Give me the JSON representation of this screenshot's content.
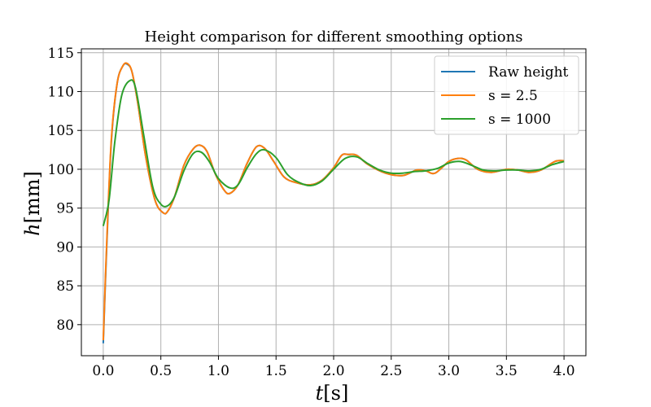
{
  "chart_data": {
    "type": "line",
    "title": "Height comparison for different smoothing options",
    "xlabel_italic": "t",
    "xlabel_unit": "[s]",
    "ylabel_italic": "h",
    "ylabel_unit": "[mm]",
    "xlim": [
      -0.19,
      4.19
    ],
    "ylim": [
      76.0,
      115.5
    ],
    "xticks": [
      0.0,
      0.5,
      1.0,
      1.5,
      2.0,
      2.5,
      3.0,
      3.5,
      4.0
    ],
    "xtick_labels": [
      "0.0",
      "0.5",
      "1.0",
      "1.5",
      "2.0",
      "2.5",
      "3.0",
      "3.5",
      "4.0"
    ],
    "yticks": [
      80,
      85,
      90,
      95,
      100,
      105,
      110,
      115
    ],
    "ytick_labels": [
      "80",
      "85",
      "90",
      "95",
      "100",
      "105",
      "110",
      "115"
    ],
    "grid": true,
    "legend_position": "top-right",
    "series": [
      {
        "name": "Raw height",
        "color": "#1f77b4",
        "x": [
          0.0,
          0.03,
          0.07,
          0.12,
          0.17,
          0.21,
          0.25,
          0.3,
          0.37,
          0.45,
          0.52,
          0.56,
          0.62,
          0.7,
          0.78,
          0.84,
          0.9,
          0.97,
          1.05,
          1.1,
          1.17,
          1.25,
          1.33,
          1.4,
          1.48,
          1.57,
          1.67,
          1.8,
          1.9,
          2.0,
          2.07,
          2.13,
          2.2,
          2.3,
          2.45,
          2.6,
          2.72,
          2.8,
          2.88,
          3.0,
          3.08,
          3.15,
          3.25,
          3.37,
          3.5,
          3.6,
          3.7,
          3.8,
          3.92,
          4.0
        ],
        "values": [
          77.6,
          90.0,
          103.5,
          111.0,
          113.3,
          113.5,
          112.5,
          108.5,
          101.5,
          96.0,
          94.4,
          94.6,
          96.5,
          100.5,
          102.6,
          103.1,
          102.3,
          99.5,
          97.3,
          96.9,
          98.0,
          100.8,
          102.9,
          102.7,
          101.0,
          99.0,
          98.3,
          98.0,
          98.6,
          100.2,
          101.8,
          101.9,
          101.8,
          100.6,
          99.5,
          99.2,
          99.9,
          99.8,
          99.5,
          101.0,
          101.4,
          101.2,
          100.0,
          99.6,
          100.0,
          99.9,
          99.6,
          99.9,
          101.0,
          101.1
        ]
      },
      {
        "name": "s = 2.5",
        "color": "#ff7f0e",
        "x": [
          0.0,
          0.03,
          0.07,
          0.12,
          0.17,
          0.21,
          0.25,
          0.3,
          0.37,
          0.45,
          0.52,
          0.56,
          0.62,
          0.7,
          0.78,
          0.84,
          0.9,
          0.97,
          1.05,
          1.1,
          1.17,
          1.25,
          1.33,
          1.4,
          1.48,
          1.57,
          1.67,
          1.8,
          1.9,
          2.0,
          2.07,
          2.13,
          2.2,
          2.3,
          2.45,
          2.6,
          2.72,
          2.8,
          2.88,
          3.0,
          3.08,
          3.15,
          3.25,
          3.37,
          3.5,
          3.6,
          3.7,
          3.8,
          3.92,
          4.0
        ],
        "values": [
          78.0,
          90.5,
          103.8,
          111.0,
          113.3,
          113.6,
          112.5,
          108.5,
          101.5,
          96.0,
          94.4,
          94.6,
          96.5,
          100.5,
          102.6,
          103.1,
          102.3,
          99.5,
          97.3,
          96.9,
          98.0,
          100.8,
          102.9,
          102.7,
          101.0,
          99.0,
          98.3,
          98.0,
          98.6,
          100.2,
          101.8,
          101.9,
          101.8,
          100.6,
          99.5,
          99.2,
          99.9,
          99.8,
          99.5,
          101.0,
          101.4,
          101.2,
          100.0,
          99.6,
          100.0,
          99.9,
          99.6,
          99.9,
          101.0,
          101.1
        ]
      },
      {
        "name": "s = 1000",
        "color": "#2ca02c",
        "x": [
          0.0,
          0.05,
          0.1,
          0.16,
          0.23,
          0.28,
          0.35,
          0.43,
          0.5,
          0.56,
          0.62,
          0.7,
          0.78,
          0.85,
          0.92,
          1.0,
          1.1,
          1.17,
          1.25,
          1.33,
          1.4,
          1.5,
          1.6,
          1.7,
          1.8,
          1.9,
          2.0,
          2.1,
          2.2,
          2.3,
          2.4,
          2.5,
          2.6,
          2.7,
          2.8,
          2.9,
          3.0,
          3.1,
          3.2,
          3.3,
          3.4,
          3.5,
          3.6,
          3.7,
          3.8,
          3.9,
          4.0
        ],
        "values": [
          92.7,
          96.0,
          103.5,
          109.5,
          111.4,
          110.5,
          104.5,
          97.7,
          95.5,
          95.3,
          96.5,
          99.8,
          102.0,
          102.2,
          101.0,
          98.8,
          97.6,
          98.0,
          100.2,
          102.0,
          102.5,
          101.5,
          99.3,
          98.3,
          97.9,
          98.5,
          100.0,
          101.4,
          101.6,
          100.7,
          99.9,
          99.5,
          99.5,
          99.7,
          99.8,
          100.1,
          100.8,
          101.0,
          100.5,
          99.9,
          99.8,
          99.9,
          99.9,
          99.8,
          100.0,
          100.6,
          101.0
        ]
      }
    ]
  }
}
